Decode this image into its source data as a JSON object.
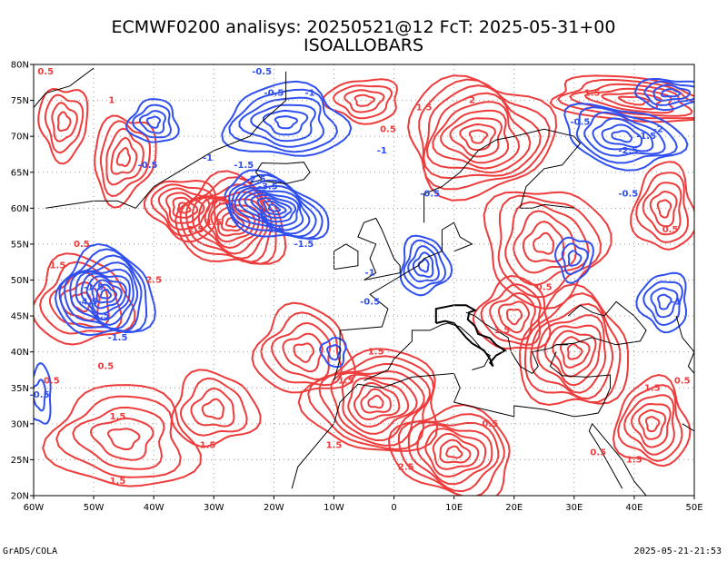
{
  "title_line1": "ECMWF0200 analisys: 20250521@12 FcT: 2025-05-31+00",
  "title_line2": "ISOALLOBARS",
  "footer_left": "GrADS/COLA",
  "footer_right": "2025-05-21-21:53",
  "colors": {
    "positive": "#ee3b3b",
    "negative": "#2f4ff0",
    "grid": "#999999",
    "coast": "#000000"
  },
  "map": {
    "lon_range": [
      -60,
      50
    ],
    "lat_range": [
      20,
      80
    ],
    "lat_ticks": [
      "80N",
      "75N",
      "70N",
      "65N",
      "60N",
      "55N",
      "50N",
      "45N",
      "40N",
      "35N",
      "30N",
      "25N",
      "20N"
    ],
    "lon_ticks": [
      "60W",
      "50W",
      "40W",
      "30W",
      "20W",
      "10W",
      "0",
      "10E",
      "20E",
      "30E",
      "40E",
      "50E"
    ]
  },
  "contour_labels": [
    {
      "text": "-1.5",
      "lon": -50,
      "lat": 49,
      "sign": "neg"
    },
    {
      "text": "-3.5",
      "lon": -49,
      "lat": 45,
      "sign": "neg"
    },
    {
      "text": "-1.5",
      "lon": -46,
      "lat": 42,
      "sign": "neg"
    },
    {
      "text": "-4.5",
      "lon": -51,
      "lat": 47,
      "sign": "neg"
    },
    {
      "text": "1.5",
      "lon": -56,
      "lat": 52,
      "sign": "pos"
    },
    {
      "text": "2.5",
      "lon": -40,
      "lat": 50,
      "sign": "pos"
    },
    {
      "text": "2.5",
      "lon": -33,
      "lat": 57,
      "sign": "pos"
    },
    {
      "text": "1.5",
      "lon": -30,
      "lat": 58,
      "sign": "pos"
    },
    {
      "text": "0.5",
      "lon": -52,
      "lat": 55,
      "sign": "pos"
    },
    {
      "text": "0.5",
      "lon": -29,
      "lat": 61,
      "sign": "pos"
    },
    {
      "text": "-1.5",
      "lon": -25,
      "lat": 66,
      "sign": "neg"
    },
    {
      "text": "-2.5",
      "lon": -23,
      "lat": 64,
      "sign": "neg"
    },
    {
      "text": "-3.5",
      "lon": -21,
      "lat": 63,
      "sign": "neg"
    },
    {
      "text": "-1",
      "lon": -31,
      "lat": 67,
      "sign": "neg"
    },
    {
      "text": "-4.5",
      "lon": -20,
      "lat": 57,
      "sign": "neg"
    },
    {
      "text": "-1.5",
      "lon": -15,
      "lat": 55,
      "sign": "neg"
    },
    {
      "text": "-1",
      "lon": -14,
      "lat": 76,
      "sign": "neg"
    },
    {
      "text": "-0.5",
      "lon": -20,
      "lat": 76,
      "sign": "neg"
    },
    {
      "text": "-0.5",
      "lon": -41,
      "lat": 66,
      "sign": "neg"
    },
    {
      "text": "-1",
      "lon": -2,
      "lat": 68,
      "sign": "neg"
    },
    {
      "text": "-0.5",
      "lon": 6,
      "lat": 62,
      "sign": "neg"
    },
    {
      "text": "1.5",
      "lon": 5,
      "lat": 74,
      "sign": "pos"
    },
    {
      "text": "2",
      "lon": 13,
      "lat": 75,
      "sign": "pos"
    },
    {
      "text": "1.5",
      "lon": 33,
      "lat": 76,
      "sign": "pos"
    },
    {
      "text": "-1.5",
      "lon": 42,
      "lat": 70,
      "sign": "neg"
    },
    {
      "text": "-2",
      "lon": 44,
      "lat": 71,
      "sign": "neg"
    },
    {
      "text": "-0.5",
      "lon": 31,
      "lat": 72,
      "sign": "neg"
    },
    {
      "text": "-2.5",
      "lon": 39,
      "lat": 68,
      "sign": "neg"
    },
    {
      "text": "-0.5",
      "lon": 39,
      "lat": 62,
      "sign": "neg"
    },
    {
      "text": "0.5",
      "lon": -58,
      "lat": 79,
      "sign": "pos"
    },
    {
      "text": "0.5",
      "lon": -1,
      "lat": 71,
      "sign": "pos"
    },
    {
      "text": "0.5",
      "lon": 46,
      "lat": 57,
      "sign": "pos"
    },
    {
      "text": "0.5",
      "lon": 25,
      "lat": 49,
      "sign": "pos"
    },
    {
      "text": "1.5",
      "lon": 18,
      "lat": 43,
      "sign": "pos"
    },
    {
      "text": "1.5",
      "lon": -3,
      "lat": 40,
      "sign": "pos"
    },
    {
      "text": "1.5",
      "lon": -8,
      "lat": 36,
      "sign": "pos"
    },
    {
      "text": "0.5",
      "lon": -48,
      "lat": 38,
      "sign": "pos"
    },
    {
      "text": "0.5",
      "lon": -57,
      "lat": 36,
      "sign": "pos"
    },
    {
      "text": "1.5",
      "lon": -46,
      "lat": 31,
      "sign": "pos"
    },
    {
      "text": "1.5",
      "lon": -31,
      "lat": 27,
      "sign": "pos"
    },
    {
      "text": "1.5",
      "lon": -46,
      "lat": 22,
      "sign": "pos"
    },
    {
      "text": "-0.5",
      "lon": -4,
      "lat": 47,
      "sign": "neg"
    },
    {
      "text": "1.5",
      "lon": -10,
      "lat": 27,
      "sign": "pos"
    },
    {
      "text": "2.5",
      "lon": 2,
      "lat": 24,
      "sign": "pos"
    },
    {
      "text": "0.5",
      "lon": 16,
      "lat": 30,
      "sign": "pos"
    },
    {
      "text": "1.5",
      "lon": 43,
      "lat": 35,
      "sign": "pos"
    },
    {
      "text": "0.5",
      "lon": 48,
      "lat": 36,
      "sign": "pos"
    },
    {
      "text": "0.5",
      "lon": 34,
      "lat": 26,
      "sign": "pos"
    },
    {
      "text": "1.5",
      "lon": 40,
      "lat": 25,
      "sign": "pos"
    },
    {
      "text": "-0.5",
      "lon": -59,
      "lat": 34,
      "sign": "neg"
    },
    {
      "text": "-1",
      "lon": -4,
      "lat": 51,
      "sign": "neg"
    },
    {
      "text": "-0.5",
      "lon": -22,
      "lat": 79,
      "sign": "neg"
    },
    {
      "text": "1",
      "lon": -47,
      "lat": 75,
      "sign": "pos"
    },
    {
      "text": "-1",
      "lon": 47,
      "lat": 47,
      "sign": "neg"
    }
  ]
}
